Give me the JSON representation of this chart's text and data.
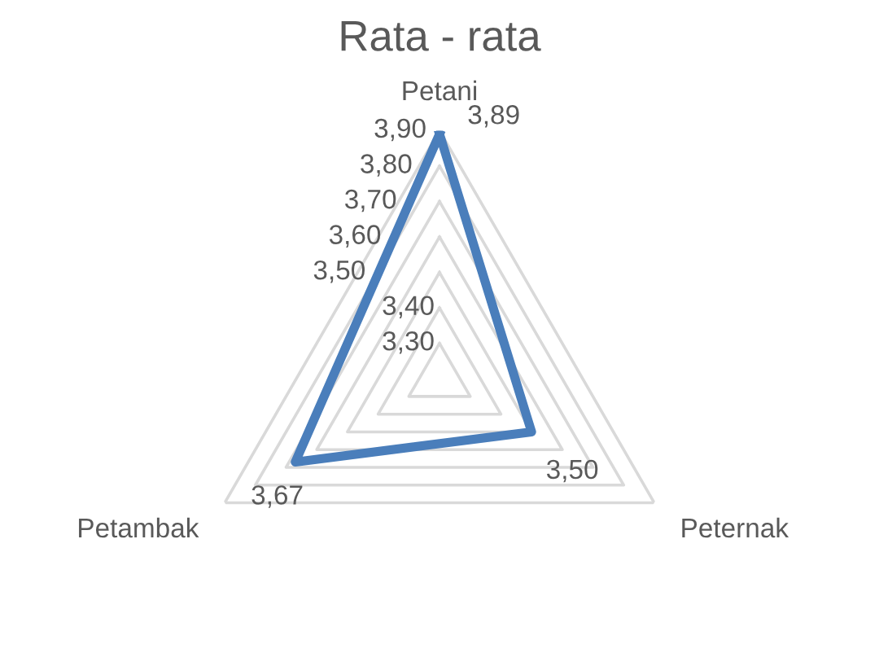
{
  "chart_data": {
    "type": "radar",
    "title": "Rata - rata",
    "categories": [
      "Petani",
      "Peternak",
      "Petambak"
    ],
    "series": [
      {
        "color": "#4a7ebb",
        "values": [
          3.89,
          3.5,
          3.67
        ],
        "value_labels": [
          "3,89",
          "3,50",
          "3,67"
        ]
      }
    ],
    "ylim": [
      3.2,
      3.9
    ],
    "yticks": [
      {
        "value": 3.3,
        "label": "3,30"
      },
      {
        "value": 3.4,
        "label": "3,40"
      },
      {
        "value": 3.5,
        "label": "3,50"
      },
      {
        "value": 3.6,
        "label": "3,60"
      },
      {
        "value": 3.7,
        "label": "3,70"
      },
      {
        "value": 3.8,
        "label": "3,80"
      },
      {
        "value": 3.9,
        "label": "3,90"
      }
    ],
    "grid": true,
    "legend": false,
    "marker": "none",
    "line_style": "solid"
  }
}
